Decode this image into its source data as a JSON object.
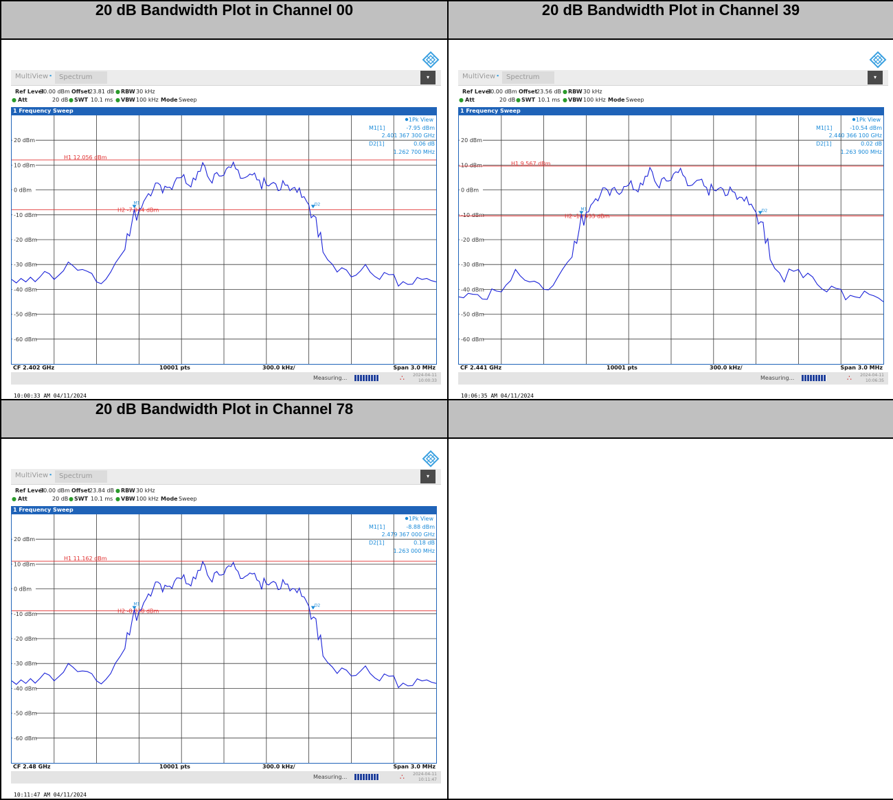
{
  "headers": {
    "plot1": "20 dB Bandwidth Plot in Channel 00",
    "plot2": "20 dB Bandwidth Plot in Channel 39",
    "plot3": "20 dB Bandwidth Plot in Channel 78"
  },
  "common": {
    "app_tab": "MultiView",
    "spectrum_tab": "Spectrum",
    "menu_icon": "menu-icon",
    "logo_icon": "rohde-schwarz-diamond-icon",
    "ref_level_label": "Ref Level",
    "ref_level_value": "30.00 dBm",
    "offset_label": "Offset",
    "rbw_label": "RBW",
    "rbw_value": "30 kHz",
    "att_label": "Att",
    "att_value": "20 dB",
    "swt_label": "SWT",
    "swt_value": "10.1 ms",
    "vbw_label": "VBW",
    "vbw_value": "100 kHz",
    "mode_label": "Mode",
    "mode_value": "Sweep",
    "sweep_title": "1 Frequency Sweep",
    "view_label": "1Pk View",
    "pts": "10001 pts",
    "div": "300.0 kHz/",
    "span": "Span 3.0 MHz",
    "measuring": "Measuring...",
    "m1_label": "M1[1]",
    "d2_label": "D2[1]",
    "trace_color": "#1a22d8",
    "line_color": "#e03030",
    "readout_color": "#1a8ad8"
  },
  "chart_data": [
    {
      "type": "line",
      "title": "20 dB Bandwidth Plot in Channel 00",
      "offset": "23.81 dB",
      "cf_label": "CF 2.402 GHz",
      "center_ghz": 2.402,
      "span_mhz": 3.0,
      "ylim": [
        -70,
        30
      ],
      "y_ticks": [
        "20 dBm",
        "10 dBm",
        "0 dBm",
        "-10 dBm",
        "-20 dBm",
        "-30 dBm",
        "-40 dBm",
        "-50 dBm",
        "-60 dBm"
      ],
      "y_tick_values": [
        20,
        10,
        0,
        -10,
        -20,
        -30,
        -40,
        -50,
        -60
      ],
      "h1_label": "H1 12.056 dBm",
      "h1": 12.056,
      "h2_label": "H2 -7.944 dBm",
      "h2": -7.944,
      "m1_value": "-7.95 dBm",
      "m1_freq": "2.401 367 300 GHz",
      "d2_value": "0.06 dB",
      "d2_freq": "1.262 700 MHz",
      "m1_x_mhz": -0.633,
      "d2_x_mhz": 0.63,
      "timestamp": "10:00:33 AM  04/11/2024",
      "status_date": "2024-04-11",
      "status_time": "10:00:33",
      "trace": {
        "x_mhz": [
          -1.5,
          -1.4,
          -1.3,
          -1.2,
          -1.1,
          -1.0,
          -0.9,
          -0.8,
          -0.7,
          -0.65,
          -0.6,
          -0.55,
          -0.5,
          -0.45,
          -0.4,
          -0.35,
          -0.3,
          -0.25,
          -0.2,
          -0.15,
          -0.1,
          -0.05,
          0.0,
          0.05,
          0.1,
          0.15,
          0.2,
          0.25,
          0.3,
          0.35,
          0.4,
          0.45,
          0.5,
          0.55,
          0.6,
          0.65,
          0.7,
          0.8,
          0.9,
          1.0,
          1.1,
          1.2,
          1.3,
          1.4,
          1.5
        ],
        "y_dbm": [
          -36,
          -37,
          -35,
          -36,
          -29,
          -32,
          -37,
          -33,
          -24,
          -13,
          -8,
          -3,
          0,
          2,
          1,
          3,
          5,
          2,
          4,
          11,
          4,
          7,
          6,
          9,
          8,
          5,
          6,
          4,
          2,
          3,
          0,
          2,
          1,
          -3,
          -6,
          -11,
          -25,
          -33,
          -35,
          -30,
          -36,
          -34,
          -38,
          -36,
          -37
        ]
      }
    },
    {
      "type": "line",
      "title": "20 dB Bandwidth Plot in Channel 39",
      "offset": "23.56 dB",
      "cf_label": "CF 2.441 GHz",
      "center_ghz": 2.441,
      "span_mhz": 3.0,
      "ylim": [
        -70,
        30
      ],
      "y_ticks": [
        "20 dBm",
        "10 dBm",
        "0 dBm",
        "-10 dBm",
        "-20 dBm",
        "-30 dBm",
        "-40 dBm",
        "-50 dBm",
        "-60 dBm"
      ],
      "y_tick_values": [
        20,
        10,
        0,
        -10,
        -20,
        -30,
        -40,
        -50,
        -60
      ],
      "h1_label": "H1 9.567 dBm",
      "h1": 9.567,
      "h2_label": "H2 -10.433 dBm",
      "h2": -10.433,
      "m1_value": "-10.54 dBm",
      "m1_freq": "2.440 366 100 GHz",
      "d2_value": "0.02 dB",
      "d2_freq": "1.263 900 MHz",
      "m1_x_mhz": -0.634,
      "d2_x_mhz": 0.63,
      "timestamp": "10:06:35 AM  04/11/2024",
      "status_date": "2024-04-11",
      "status_time": "10:06:35",
      "trace": {
        "x_mhz": [
          -1.5,
          -1.4,
          -1.3,
          -1.2,
          -1.1,
          -1.0,
          -0.9,
          -0.8,
          -0.7,
          -0.65,
          -0.6,
          -0.55,
          -0.5,
          -0.45,
          -0.4,
          -0.35,
          -0.3,
          -0.25,
          -0.2,
          -0.15,
          -0.1,
          -0.05,
          0.0,
          0.05,
          0.1,
          0.15,
          0.2,
          0.25,
          0.3,
          0.35,
          0.4,
          0.45,
          0.5,
          0.55,
          0.6,
          0.65,
          0.7,
          0.8,
          0.9,
          1.0,
          1.1,
          1.2,
          1.3,
          1.4,
          1.5
        ],
        "y_dbm": [
          -43,
          -42,
          -44,
          -41,
          -32,
          -37,
          -40,
          -35,
          -27,
          -16,
          -9,
          -5,
          -2,
          0,
          1,
          -1,
          2,
          0,
          2,
          9,
          2,
          5,
          4,
          7,
          5,
          2,
          4,
          1,
          0,
          1,
          -2,
          -1,
          -3,
          -6,
          -9,
          -13,
          -28,
          -37,
          -32,
          -35,
          -41,
          -40,
          -43,
          -42,
          -45
        ]
      }
    },
    {
      "type": "line",
      "title": "20 dB Bandwidth Plot in Channel 78",
      "offset": "23.84 dB",
      "cf_label": "CF 2.48 GHz",
      "center_ghz": 2.48,
      "span_mhz": 3.0,
      "ylim": [
        -70,
        30
      ],
      "y_ticks": [
        "20 dBm",
        "10 dBm",
        "0 dBm",
        "-10 dBm",
        "-20 dBm",
        "-30 dBm",
        "-40 dBm",
        "-50 dBm",
        "-60 dBm"
      ],
      "y_tick_values": [
        20,
        10,
        0,
        -10,
        -20,
        -30,
        -40,
        -50,
        -60
      ],
      "h1_label": "H1 11.162 dBm",
      "h1": 11.162,
      "h2_label": "H2 -8.838 dBm",
      "h2": -8.838,
      "m1_value": "-8.88 dBm",
      "m1_freq": "2.479 367 000 GHz",
      "d2_value": "0.18 dB",
      "d2_freq": "1.263 000 MHz",
      "m1_x_mhz": -0.633,
      "d2_x_mhz": 0.63,
      "timestamp": "10:11:47 AM  04/11/2024",
      "status_date": "2024-04-11",
      "status_time": "10:11:47",
      "trace": {
        "x_mhz": [
          -1.5,
          -1.4,
          -1.3,
          -1.2,
          -1.1,
          -1.0,
          -0.9,
          -0.8,
          -0.7,
          -0.65,
          -0.6,
          -0.55,
          -0.5,
          -0.45,
          -0.4,
          -0.35,
          -0.3,
          -0.25,
          -0.2,
          -0.15,
          -0.1,
          -0.05,
          0.0,
          0.05,
          0.1,
          0.15,
          0.2,
          0.25,
          0.3,
          0.35,
          0.4,
          0.45,
          0.5,
          0.55,
          0.6,
          0.65,
          0.7,
          0.8,
          0.9,
          1.0,
          1.1,
          1.2,
          1.3,
          1.4,
          1.5
        ],
        "y_dbm": [
          -37,
          -38,
          -36,
          -37,
          -30,
          -33,
          -37,
          -34,
          -24,
          -13,
          -9,
          -4,
          0,
          2,
          1,
          3,
          4,
          2,
          4,
          11,
          4,
          7,
          6,
          9,
          7,
          5,
          6,
          3,
          2,
          3,
          0,
          2,
          0,
          -3,
          -7,
          -12,
          -27,
          -34,
          -35,
          -31,
          -37,
          -35,
          -39,
          -37,
          -38
        ]
      }
    }
  ]
}
